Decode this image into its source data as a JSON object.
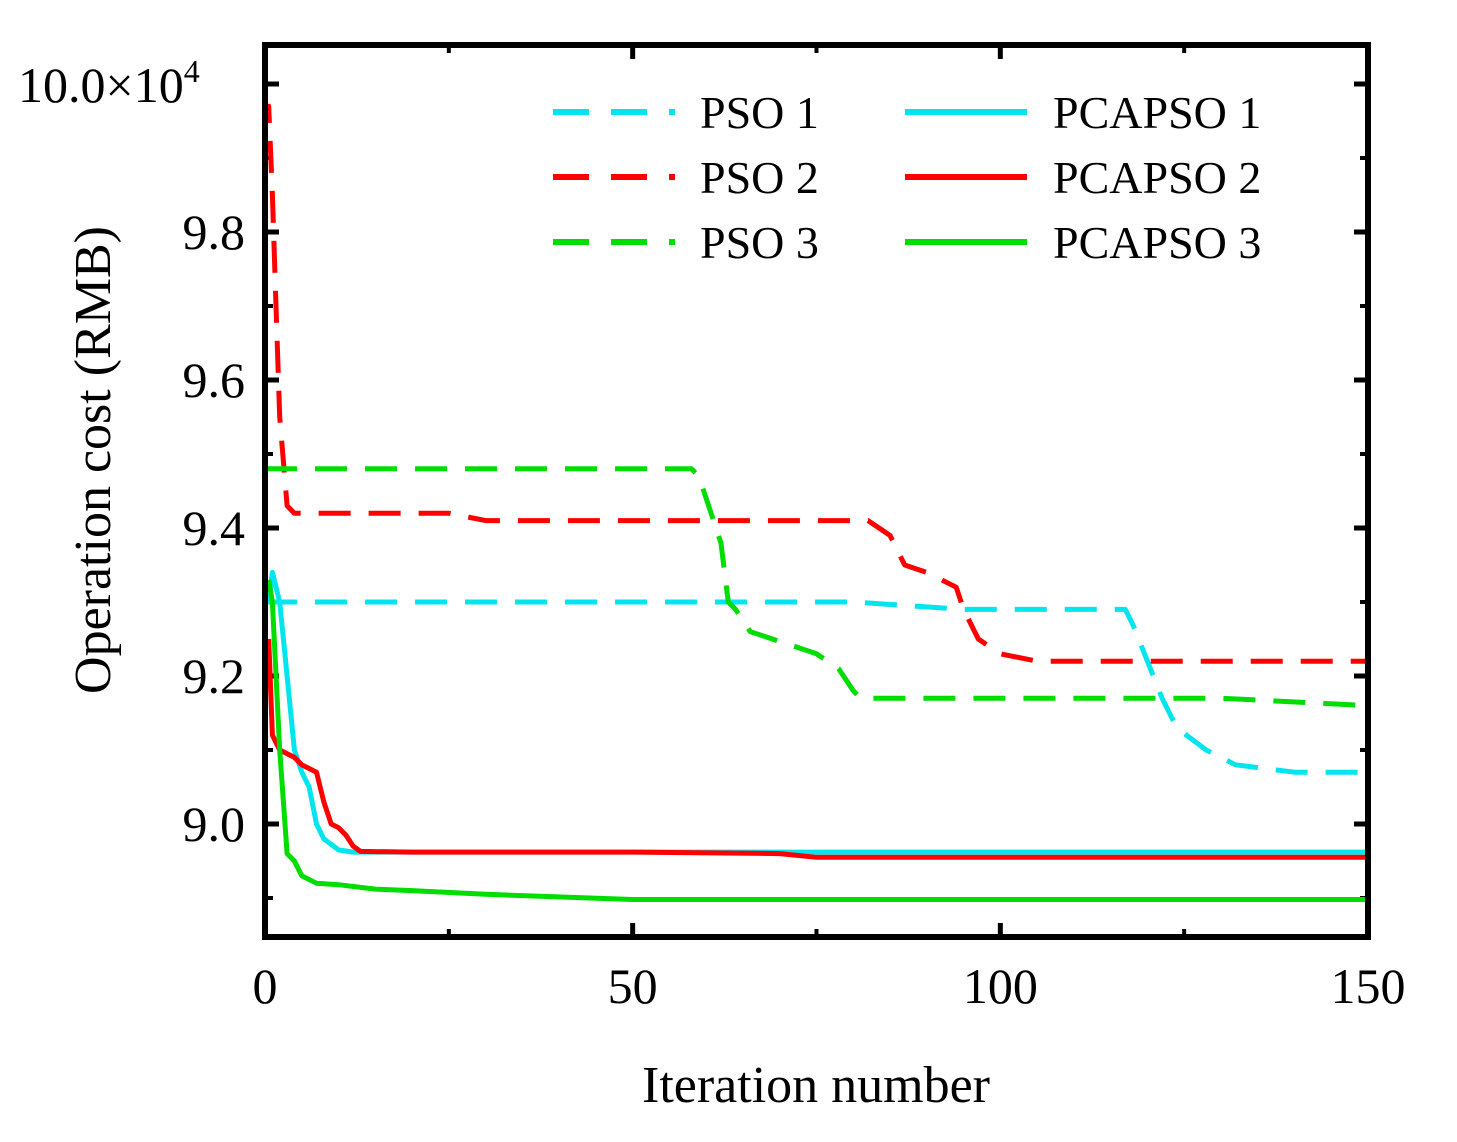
{
  "chart_data": {
    "type": "line",
    "title": "",
    "xlabel": "Iteration number",
    "ylabel": "Operation cost (RMB)",
    "xlim": [
      0,
      150
    ],
    "ylim": [
      8.88,
      10.05
    ],
    "x_ticks": [
      0,
      50,
      100,
      150
    ],
    "x_tick_labels": [
      "0",
      "50",
      "100",
      "150"
    ],
    "y_ticks": [
      9.0,
      9.2,
      9.4,
      9.6,
      9.8,
      10.0
    ],
    "y_tick_labels": [
      "9.0",
      "9.2",
      "9.4",
      "9.6",
      "9.8"
    ],
    "y_top_label": {
      "mantissa": "10.0×10",
      "exponent": "4"
    },
    "grid": false,
    "legend_placement": "top-right",
    "series": [
      {
        "name": "PSO  1",
        "color": "#00e5ee",
        "dash": true,
        "points": [
          [
            0,
            9.3
          ],
          [
            5,
            9.3
          ],
          [
            30,
            9.3
          ],
          [
            60,
            9.3
          ],
          [
            80,
            9.3
          ],
          [
            95,
            9.29
          ],
          [
            110,
            9.29
          ],
          [
            117,
            9.29
          ],
          [
            118,
            9.27
          ],
          [
            120,
            9.22
          ],
          [
            122,
            9.17
          ],
          [
            124,
            9.13
          ],
          [
            128,
            9.1
          ],
          [
            132,
            9.08
          ],
          [
            140,
            9.07
          ],
          [
            150,
            9.07
          ]
        ]
      },
      {
        "name": "PSO  2",
        "color": "#ff0000",
        "dash": true,
        "points": [
          [
            0,
            9.95
          ],
          [
            0.5,
            9.97
          ],
          [
            1,
            9.85
          ],
          [
            1.5,
            9.7
          ],
          [
            2,
            9.55
          ],
          [
            3,
            9.43
          ],
          [
            4,
            9.42
          ],
          [
            10,
            9.42
          ],
          [
            25,
            9.42
          ],
          [
            30,
            9.41
          ],
          [
            60,
            9.41
          ],
          [
            82,
            9.41
          ],
          [
            85,
            9.39
          ],
          [
            87,
            9.35
          ],
          [
            90,
            9.34
          ],
          [
            94,
            9.32
          ],
          [
            95,
            9.29
          ],
          [
            97,
            9.25
          ],
          [
            100,
            9.23
          ],
          [
            105,
            9.22
          ],
          [
            130,
            9.22
          ],
          [
            150,
            9.22
          ]
        ]
      },
      {
        "name": "PSO  3",
        "color": "#00dd00",
        "dash": true,
        "points": [
          [
            0,
            9.48
          ],
          [
            20,
            9.48
          ],
          [
            40,
            9.48
          ],
          [
            58,
            9.48
          ],
          [
            59,
            9.47
          ],
          [
            62,
            9.38
          ],
          [
            63,
            9.3
          ],
          [
            64,
            9.29
          ],
          [
            66,
            9.26
          ],
          [
            69,
            9.25
          ],
          [
            75,
            9.23
          ],
          [
            78,
            9.21
          ],
          [
            80,
            9.18
          ],
          [
            81,
            9.17
          ],
          [
            90,
            9.17
          ],
          [
            100,
            9.17
          ],
          [
            130,
            9.17
          ],
          [
            150,
            9.16
          ]
        ]
      },
      {
        "name": "PCAPSO  1",
        "color": "#00e5ee",
        "dash": false,
        "points": [
          [
            0.5,
            9.3
          ],
          [
            1,
            9.34
          ],
          [
            2,
            9.3
          ],
          [
            3,
            9.2
          ],
          [
            4,
            9.1
          ],
          [
            5,
            9.07
          ],
          [
            6,
            9.05
          ],
          [
            7,
            9.0
          ],
          [
            8,
            8.98
          ],
          [
            10,
            8.965
          ],
          [
            12,
            8.962
          ],
          [
            20,
            8.962
          ],
          [
            50,
            8.962
          ],
          [
            100,
            8.962
          ],
          [
            150,
            8.962
          ]
        ]
      },
      {
        "name": "PCAPSO  2",
        "color": "#ff0000",
        "dash": false,
        "points": [
          [
            0.5,
            9.25
          ],
          [
            1,
            9.12
          ],
          [
            2,
            9.1
          ],
          [
            4,
            9.09
          ],
          [
            5,
            9.08
          ],
          [
            6,
            9.075
          ],
          [
            7,
            9.07
          ],
          [
            8,
            9.03
          ],
          [
            9,
            9.0
          ],
          [
            10,
            8.995
          ],
          [
            11,
            8.985
          ],
          [
            12,
            8.97
          ],
          [
            13,
            8.963
          ],
          [
            20,
            8.962
          ],
          [
            50,
            8.962
          ],
          [
            70,
            8.96
          ],
          [
            75,
            8.955
          ],
          [
            100,
            8.955
          ],
          [
            150,
            8.955
          ]
        ]
      },
      {
        "name": "PCAPSO  3",
        "color": "#00dd00",
        "dash": false,
        "points": [
          [
            0.5,
            9.33
          ],
          [
            1,
            9.3
          ],
          [
            2,
            9.1
          ],
          [
            3,
            8.96
          ],
          [
            4,
            8.95
          ],
          [
            5,
            8.93
          ],
          [
            6,
            8.925
          ],
          [
            7,
            8.92
          ],
          [
            10,
            8.918
          ],
          [
            15,
            8.912
          ],
          [
            20,
            8.91
          ],
          [
            30,
            8.905
          ],
          [
            50,
            8.898
          ],
          [
            100,
            8.898
          ],
          [
            150,
            8.898
          ]
        ]
      }
    ]
  }
}
